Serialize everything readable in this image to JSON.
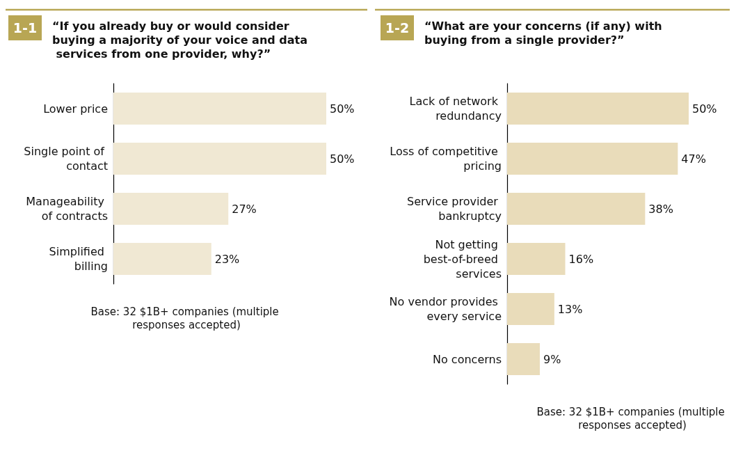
{
  "chart_data": [
    {
      "type": "bar",
      "orientation": "horizontal",
      "title": "“If you already buy or would consider buying a majority of your voice and data services from one provider, why?”",
      "subtitle": "1-1",
      "categories": [
        "Lower price",
        "Single point of contact",
        "Manageability of contracts",
        "Simplified billing"
      ],
      "values": [
        50,
        50,
        27,
        23
      ],
      "value_labels": [
        "50%",
        "50%",
        "27%",
        "23%"
      ],
      "color": "#f0e8d3",
      "tick_labels": "y",
      "annotations": [
        "Base: 32 $1B+ companies (multiple responses accepted)"
      ]
    },
    {
      "type": "bar",
      "orientation": "horizontal",
      "title": "“What are your concerns (if any) with buying from a single provider?”",
      "subtitle": "1-2",
      "categories": [
        "Lack of network redundancy",
        "Loss of competitive pricing",
        "Service provider bankruptcy",
        "Not getting best-of-breed services",
        "No vendor provides every service",
        "No concerns"
      ],
      "values": [
        50,
        47,
        38,
        16,
        13,
        9
      ],
      "value_labels": [
        "50%",
        "47%",
        "38%",
        "16%",
        "13%",
        "9%"
      ],
      "color": "#e9dcba",
      "tick_labels": "y",
      "annotations": [
        "Base: 32 $1B+ companies (multiple responses accepted)"
      ]
    }
  ]
}
